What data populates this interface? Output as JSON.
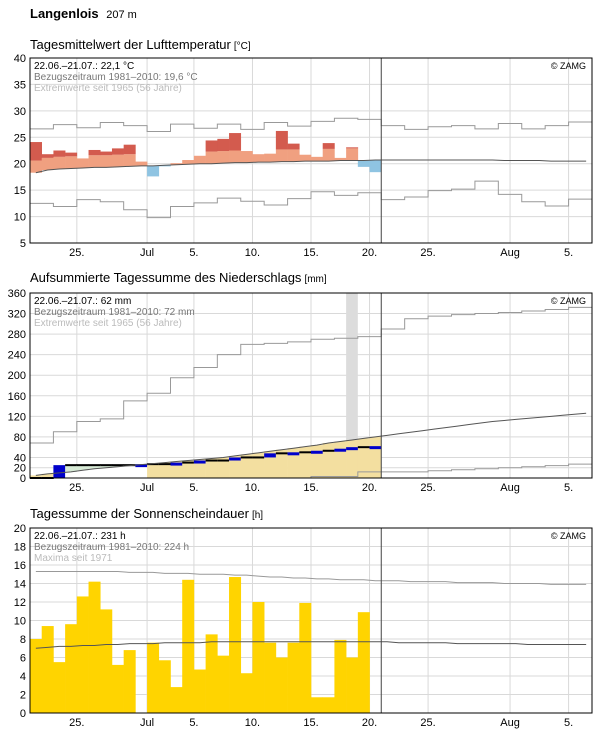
{
  "station": {
    "name": "Langenlois",
    "elevation": "207 m"
  },
  "x_tick_labels": [
    "25.",
    "Jul",
    "5.",
    "10.",
    "15.",
    "20.",
    "25.",
    "Aug",
    "5."
  ],
  "copyright": "© ZAMG",
  "chart_data": [
    {
      "type": "line",
      "title": "Tagesmittelwert der Lufttemperatur",
      "unit": "[°C]",
      "ylim": [
        5,
        40
      ],
      "yticks": [
        "5",
        "10",
        "15",
        "20",
        "25",
        "30",
        "35",
        "40"
      ],
      "info": [
        "22.06.–21.07.: 22,1 °C",
        "Bezugszeitraum 1981–2010: 19,6 °C",
        "Extremwerte seit 1965 (56 Jahre)"
      ],
      "daily_mean": [
        24.1,
        21.8,
        22.5,
        22.1,
        21.0,
        22.6,
        22.3,
        22.9,
        23.6,
        20.4,
        17.6,
        19.5,
        20.1,
        20.7,
        21.5,
        24.4,
        24.7,
        25.8,
        22.4,
        21.8,
        21.9,
        26.2,
        23.8,
        21.7,
        21.3,
        23.9,
        21.1,
        23.1,
        19.4,
        18.4
      ],
      "normal": [
        18.3,
        18.8,
        19.0,
        19.1,
        19.2,
        19.3,
        19.3,
        19.4,
        19.5,
        19.6,
        19.6,
        19.7,
        19.8,
        19.9,
        20.0,
        20.0,
        20.1,
        20.2,
        20.2,
        20.3,
        20.3,
        20.4,
        20.4,
        20.5,
        20.5,
        20.5,
        20.6,
        20.6,
        20.6,
        20.7,
        20.7,
        20.7,
        20.7,
        20.7,
        20.7,
        20.7,
        20.7,
        20.7,
        20.7,
        20.7,
        20.6,
        20.6,
        20.6,
        20.6,
        20.5,
        20.5,
        20.5,
        20.5
      ],
      "extreme_max": [
        26.6,
        26.6,
        27.4,
        27.4,
        26.8,
        26.8,
        27.8,
        27.8,
        27.2,
        27.2,
        26.1,
        26.1,
        27.5,
        27.5,
        26.7,
        26.7,
        27.5,
        27.5,
        26.5,
        26.5,
        27.8,
        27.8,
        27.1,
        27.1,
        28.0,
        28.0,
        28.6,
        28.6,
        28.4,
        28.4,
        27.2,
        27.2,
        26.5,
        26.5,
        27.0,
        27.0,
        27.2,
        27.2,
        26.6,
        26.6,
        27.6,
        27.6,
        26.6,
        26.6,
        27.2,
        27.2,
        27.9,
        27.9
      ],
      "extreme_min": [
        12.5,
        12.5,
        11.9,
        11.9,
        13.2,
        13.2,
        12.8,
        12.8,
        11.3,
        11.3,
        9.8,
        9.8,
        11.9,
        11.9,
        12.6,
        12.6,
        13.5,
        13.5,
        12.9,
        12.9,
        12.2,
        12.2,
        13.4,
        13.4,
        14.7,
        14.7,
        14.0,
        14.0,
        14.5,
        14.5,
        13.2,
        13.2,
        13.7,
        13.7,
        14.9,
        14.9,
        15.2,
        15.2,
        16.7,
        16.7,
        14.2,
        14.2,
        12.8,
        12.8,
        12.0,
        12.0,
        13.3,
        13.3
      ]
    },
    {
      "type": "area",
      "title": "Aufsummierte Tagessumme des Niederschlags",
      "unit": "[mm]",
      "ylim": [
        0,
        360
      ],
      "yticks": [
        "0",
        "20",
        "40",
        "80",
        "120",
        "160",
        "200",
        "240",
        "280",
        "320",
        "360"
      ],
      "info": [
        "22.06.–21.07.: 62 mm",
        "Bezugszeitraum 1981–2010: 72 mm",
        "Extremwerte seit 1965 (56 Jahre)"
      ],
      "cumulative": [
        0,
        0,
        0,
        0,
        25,
        25,
        25,
        25,
        25,
        25,
        25,
        25,
        27,
        27,
        27,
        27,
        27,
        27,
        27,
        27,
        30,
        30,
        30,
        30,
        30,
        30,
        30,
        30,
        30,
        30,
        30,
        30,
        30,
        30,
        30,
        30,
        30,
        30,
        30,
        30,
        30,
        30,
        30,
        30,
        30,
        30,
        30,
        30,
        30,
        30,
        30,
        30,
        30,
        30,
        30,
        30,
        30,
        30,
        30,
        30
      ],
      "cumulative_daily": [
        0,
        0,
        25,
        25,
        25,
        25,
        25,
        25,
        25,
        27,
        27,
        27,
        30,
        30,
        34,
        34,
        34,
        40,
        40,
        40,
        48,
        48,
        50,
        50,
        53,
        53,
        57,
        60,
        60,
        62
      ],
      "normal": [
        5,
        8,
        10,
        12,
        15,
        18,
        20,
        22,
        24,
        26,
        28,
        30,
        32,
        34,
        36,
        38,
        40,
        43,
        46,
        49,
        52,
        55,
        58,
        61,
        64,
        68,
        71,
        74,
        77,
        80,
        83,
        86,
        89,
        92,
        95,
        98,
        101,
        104,
        107,
        110,
        112,
        114,
        116,
        118,
        120,
        122,
        124,
        126
      ],
      "extreme_max": [
        68,
        68,
        90,
        90,
        110,
        110,
        115,
        115,
        150,
        150,
        165,
        165,
        195,
        195,
        215,
        215,
        240,
        240,
        260,
        260,
        262,
        262,
        265,
        265,
        270,
        270,
        272,
        272,
        275,
        275,
        290,
        290,
        310,
        310,
        315,
        315,
        318,
        318,
        320,
        320,
        322,
        322,
        325,
        325,
        328,
        328,
        332,
        332
      ],
      "extreme_min": [
        0,
        0,
        0,
        0,
        0,
        0,
        0,
        0,
        0,
        0,
        0,
        0,
        0,
        0,
        0,
        0,
        0,
        0,
        0,
        0,
        0,
        0,
        0,
        0,
        3,
        3,
        3,
        3,
        12,
        12,
        12,
        12,
        12,
        12,
        14,
        14,
        16,
        16,
        18,
        18,
        20,
        20,
        22,
        22,
        24,
        24,
        27,
        27
      ],
      "missing_day_index": 27
    },
    {
      "type": "bar",
      "title": "Tagessumme der Sonnenscheindauer",
      "unit": "[h]",
      "ylim": [
        0,
        20
      ],
      "yticks": [
        "0",
        "2",
        "4",
        "6",
        "8",
        "10",
        "12",
        "14",
        "16",
        "18",
        "20"
      ],
      "info": [
        "22.06.–21.07.: 231 h",
        "Bezugszeitraum 1981–2010: 224 h",
        "Maxima seit 1971"
      ],
      "values": [
        8.0,
        9.4,
        5.5,
        9.6,
        12.6,
        14.2,
        11.2,
        5.2,
        6.8,
        0,
        7.6,
        5.7,
        2.8,
        14.4,
        4.7,
        8.5,
        6.2,
        14.7,
        4.3,
        12.0,
        7.6,
        6.0,
        7.6,
        11.9,
        1.7,
        1.7,
        7.9,
        6.0,
        10.9
      ],
      "normal": [
        7.0,
        7.1,
        7.2,
        7.2,
        7.3,
        7.3,
        7.4,
        7.4,
        7.5,
        7.5,
        7.5,
        7.6,
        7.6,
        7.6,
        7.6,
        7.7,
        7.7,
        7.7,
        7.7,
        7.7,
        7.7,
        7.7,
        7.7,
        7.7,
        7.7,
        7.7,
        7.7,
        7.7,
        7.7,
        7.7,
        7.7,
        7.6,
        7.6,
        7.6,
        7.6,
        7.6,
        7.5,
        7.5,
        7.5,
        7.5,
        7.5,
        7.5,
        7.4,
        7.4,
        7.4,
        7.4,
        7.4,
        7.4
      ],
      "maxima": [
        15.3,
        15.3,
        15.3,
        15.3,
        15.3,
        15.3,
        15.3,
        15.3,
        15.2,
        15.2,
        15.2,
        15.1,
        15.1,
        15.1,
        15.0,
        15.0,
        15.0,
        14.9,
        14.9,
        14.8,
        14.7,
        14.7,
        14.6,
        14.6,
        14.5,
        14.5,
        14.4,
        14.4,
        14.4,
        14.3,
        14.3,
        14.3,
        14.2,
        14.2,
        14.2,
        14.2,
        14.1,
        14.1,
        14.1,
        14.1,
        14.0,
        14.0,
        14.0,
        14.0,
        13.9,
        13.9,
        13.9,
        13.9
      ]
    }
  ],
  "colors": {
    "temp_warm": "#d35b4e",
    "temp_base": "#f0a080",
    "temp_cold": "#8fc4e2",
    "temp_extreme": "#b0202a",
    "precip_below": "#0000cc",
    "precip_fill": "#d7ead6",
    "precip_above": "#f3dfa0",
    "sunshine": "#ffd400",
    "grid": "#d9d9d9",
    "extreme_line": "#999999"
  }
}
